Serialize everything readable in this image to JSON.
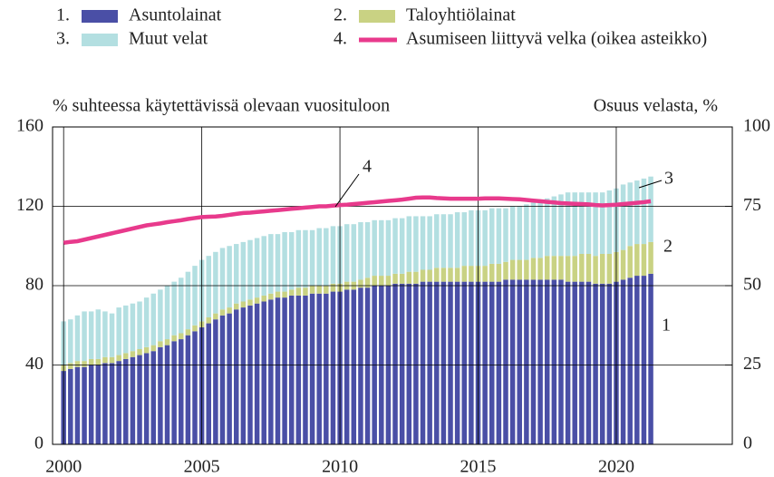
{
  "chart_data": {
    "type": "stacked-bar-line",
    "ylabel": "% suhteessa käytettävissä olevaan vuosituloon",
    "y2label": "Osuus velasta, %",
    "x": [
      2000,
      2000.25,
      2000.5,
      2000.75,
      2001,
      2001.25,
      2001.5,
      2001.75,
      2002,
      2002.25,
      2002.5,
      2002.75,
      2003,
      2003.25,
      2003.5,
      2003.75,
      2004,
      2004.25,
      2004.5,
      2004.75,
      2005,
      2005.25,
      2005.5,
      2005.75,
      2006,
      2006.25,
      2006.5,
      2006.75,
      2007,
      2007.25,
      2007.5,
      2007.75,
      2008,
      2008.25,
      2008.5,
      2008.75,
      2009,
      2009.25,
      2009.5,
      2009.75,
      2010,
      2010.25,
      2010.5,
      2010.75,
      2011,
      2011.25,
      2011.5,
      2011.75,
      2012,
      2012.25,
      2012.5,
      2012.75,
      2013,
      2013.25,
      2013.5,
      2013.75,
      2014,
      2014.25,
      2014.5,
      2014.75,
      2015,
      2015.25,
      2015.5,
      2015.75,
      2016,
      2016.25,
      2016.5,
      2016.75,
      2017,
      2017.25,
      2017.5,
      2017.75,
      2018,
      2018.25,
      2018.5,
      2018.75,
      2019,
      2019.25,
      2019.5,
      2019.75,
      2020,
      2020.25,
      2020.5,
      2020.75,
      2021,
      2021.25
    ],
    "xlim": [
      1999.6,
      2024.2
    ],
    "xticks": [
      2000,
      2005,
      2010,
      2015,
      2020
    ],
    "ylim": [
      0,
      160
    ],
    "yticks": [
      0,
      40,
      80,
      120,
      160
    ],
    "y2lim": [
      0,
      100
    ],
    "y2ticks": [
      0,
      25,
      50,
      75,
      100
    ],
    "grid": true,
    "series": [
      {
        "name": "Asuntolainat",
        "legend_number": "1.",
        "annotation": "1",
        "color": "#4a4fa6",
        "kind": "bar",
        "values": [
          37,
          38,
          39,
          39,
          40,
          40,
          41,
          41,
          42,
          43,
          44,
          45,
          46,
          47,
          49,
          50,
          52,
          53,
          55,
          57,
          59,
          61,
          63,
          65,
          66,
          68,
          69,
          70,
          71,
          72,
          73,
          74,
          74,
          75,
          75,
          75,
          76,
          76,
          76,
          77,
          77,
          78,
          78,
          79,
          79,
          80,
          80,
          80,
          81,
          81,
          81,
          81,
          82,
          82,
          82,
          82,
          82,
          82,
          82,
          82,
          82,
          82,
          82,
          82,
          83,
          83,
          83,
          83,
          83,
          83,
          83,
          83,
          83,
          82,
          82,
          82,
          82,
          81,
          81,
          81,
          82,
          83,
          84,
          85,
          85,
          86
        ]
      },
      {
        "name": "Taloyhtiölainat",
        "legend_number": "2.",
        "annotation": "2",
        "color": "#c9d283",
        "kind": "bar",
        "values": [
          3,
          3,
          3,
          3,
          3,
          3,
          3,
          3,
          3,
          3,
          3,
          3,
          3,
          3,
          3,
          3,
          3,
          3,
          3,
          3,
          3,
          3,
          3,
          3,
          3,
          3,
          3,
          3,
          3,
          3,
          3,
          3,
          3,
          3,
          4,
          4,
          4,
          4,
          4,
          4,
          4,
          4,
          4,
          4,
          5,
          5,
          5,
          5,
          5,
          5,
          6,
          6,
          6,
          6,
          7,
          7,
          7,
          7,
          8,
          8,
          8,
          8,
          9,
          9,
          9,
          10,
          10,
          10,
          11,
          11,
          12,
          12,
          12,
          13,
          13,
          14,
          14,
          14,
          15,
          15,
          15,
          15,
          16,
          16,
          16,
          16
        ]
      },
      {
        "name": "Muut velat",
        "legend_number": "3.",
        "annotation": "3",
        "color": "#b3dfe1",
        "kind": "bar",
        "values": [
          22,
          22,
          23,
          25,
          24,
          25,
          23,
          22,
          24,
          24,
          24,
          24,
          25,
          26,
          26,
          27,
          27,
          28,
          29,
          30,
          31,
          31,
          31,
          31,
          31,
          30,
          30,
          30,
          30,
          30,
          30,
          29,
          30,
          29,
          29,
          29,
          28,
          29,
          29,
          29,
          29,
          29,
          29,
          29,
          28,
          28,
          28,
          28,
          28,
          28,
          28,
          28,
          27,
          27,
          27,
          27,
          27,
          28,
          27,
          28,
          28,
          28,
          28,
          28,
          27,
          27,
          27,
          28,
          28,
          29,
          29,
          30,
          31,
          32,
          32,
          31,
          31,
          32,
          31,
          32,
          32,
          33,
          32,
          32,
          33,
          33
        ]
      },
      {
        "name": "Asumiseen liittyvä velka (oikea asteikko)",
        "legend_number": "4.",
        "annotation": "4",
        "color": "#e83a8c",
        "kind": "line",
        "axis": "y2",
        "values": [
          63.5,
          63.8,
          64,
          64.5,
          65,
          65.5,
          66,
          66.5,
          67,
          67.5,
          68,
          68.5,
          69,
          69.3,
          69.6,
          70,
          70.3,
          70.6,
          71,
          71.3,
          71.6,
          71.7,
          71.8,
          72,
          72.3,
          72.6,
          72.9,
          73,
          73.2,
          73.4,
          73.6,
          73.8,
          74,
          74.2,
          74.4,
          74.6,
          74.8,
          75,
          75,
          75.2,
          75.4,
          75.5,
          75.7,
          75.9,
          76.1,
          76.3,
          76.5,
          76.7,
          76.9,
          77.1,
          77.4,
          77.7,
          77.8,
          77.8,
          77.6,
          77.5,
          77.4,
          77.4,
          77.4,
          77.4,
          77.4,
          77.5,
          77.5,
          77.5,
          77.4,
          77.3,
          77.2,
          77,
          76.8,
          76.6,
          76.4,
          76.2,
          76,
          75.9,
          75.8,
          75.7,
          75.6,
          75.4,
          75.3,
          75.4,
          75.5,
          75.7,
          75.9,
          76.1,
          76.3,
          76.6
        ]
      }
    ]
  }
}
